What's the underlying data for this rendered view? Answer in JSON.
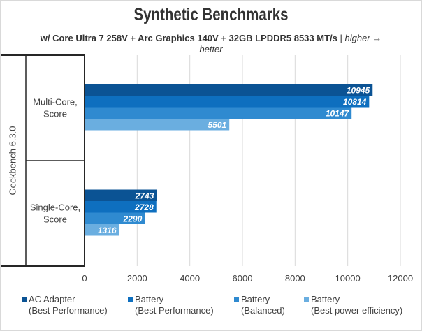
{
  "chart_data": {
    "type": "bar",
    "orientation": "horizontal",
    "title": "Synthetic Benchmarks",
    "subtitle": {
      "main": "w/ Core Ultra 7 258V + Arc Graphics 140V + 32GB LPDDR5 8533 MT/s",
      "separator": " | ",
      "note": "higher →",
      "note2": "better"
    },
    "group_label": "Geekbench 6.3.0",
    "categories": [
      "Multi-Core,|Score",
      "Single-Core,|Score"
    ],
    "series": [
      {
        "name": "AC Adapter (Best Performance)",
        "legend_line1": "AC Adapter",
        "legend_line2": "(Best Performance)",
        "color": "#0b5394",
        "values": [
          10945,
          2743
        ]
      },
      {
        "name": "Battery (Best Performance)",
        "legend_line1": "Battery",
        "legend_line2": "(Best Performance)",
        "color": "#0e6fbf",
        "values": [
          10814,
          2728
        ]
      },
      {
        "name": "Battery (Balanced)",
        "legend_line1": "Battery",
        "legend_line2": "(Balanced)",
        "color": "#2f8ad0",
        "values": [
          10147,
          2290
        ]
      },
      {
        "name": "Battery (Best power efficiency)",
        "legend_line1": "Battery",
        "legend_line2": "(Best power efficiency)",
        "color": "#6aaee0",
        "values": [
          5501,
          1316
        ]
      }
    ],
    "xlim": [
      0,
      12000
    ],
    "xticks": [
      0,
      2000,
      4000,
      6000,
      8000,
      10000,
      12000
    ],
    "grid": true,
    "legend_position": "bottom",
    "xlabel": "",
    "ylabel": ""
  }
}
